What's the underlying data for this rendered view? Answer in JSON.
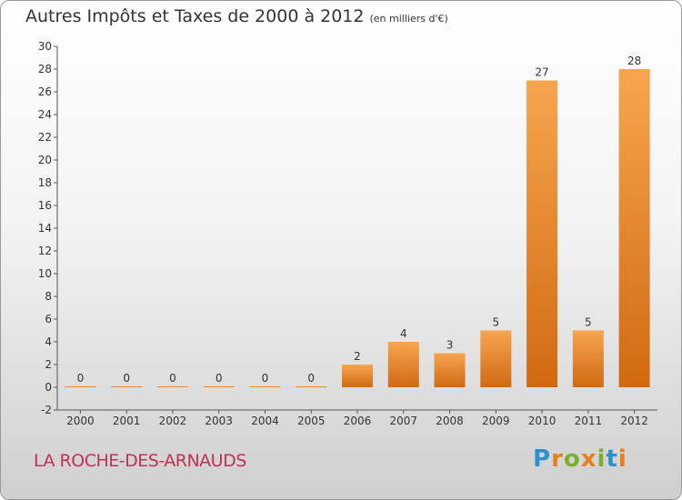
{
  "header": {
    "title": "Autres Impôts et Taxes de 2000 à 2012",
    "subtitle": "(en milliers d'€)"
  },
  "footer": {
    "commune": "LA ROCHE-DES-ARNAUDS",
    "logo": "Proxiti"
  },
  "colors": {
    "bar_light": "#f7a54f",
    "bar_dark": "#d06a12",
    "logo_letters": [
      "#2e8fd0",
      "#e8801a",
      "#7bb02a",
      "#e8801a",
      "#7bb02a",
      "#2e8fd0",
      "#e8801a"
    ]
  },
  "chart_data": {
    "type": "bar",
    "title": "Autres Impôts et Taxes de 2000 à 2012",
    "subtitle": "(en milliers d'€)",
    "categories": [
      "2000",
      "2001",
      "2002",
      "2003",
      "2004",
      "2005",
      "2006",
      "2007",
      "2008",
      "2009",
      "2010",
      "2011",
      "2012"
    ],
    "values": [
      0,
      0,
      0,
      0,
      0,
      0,
      2,
      4,
      3,
      5,
      27,
      5,
      28
    ],
    "ylim": [
      -2,
      30
    ],
    "yticks": [
      -2,
      0,
      2,
      4,
      6,
      8,
      10,
      12,
      14,
      16,
      18,
      20,
      22,
      24,
      26,
      28,
      30
    ],
    "grid": false,
    "data_labels": true
  }
}
